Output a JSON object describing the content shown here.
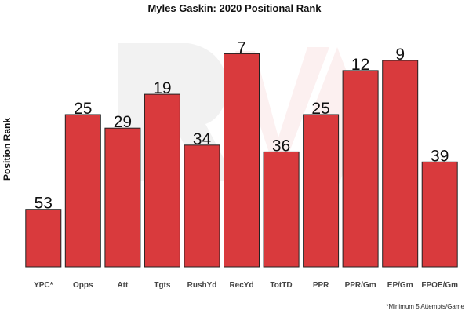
{
  "chart_data": {
    "type": "bar",
    "title": "Myles Gaskin: 2020 Positional Rank",
    "xlabel": "",
    "ylabel": "Position Rank",
    "y_axis_inverted": true,
    "ylim": [
      70,
      1
    ],
    "grid": false,
    "categories": [
      "YPC*",
      "Opps",
      "Att",
      "Tgts",
      "RushYd",
      "RecYd",
      "TotTD",
      "PPR",
      "PPR/Gm",
      "EP/Gm",
      "FPOE/Gm"
    ],
    "values": [
      53,
      25,
      29,
      19,
      34,
      7,
      36,
      25,
      12,
      9,
      39
    ],
    "bar_color": "#d93a3d",
    "footnote": "*Minimum 5 Attempts/Game"
  }
}
